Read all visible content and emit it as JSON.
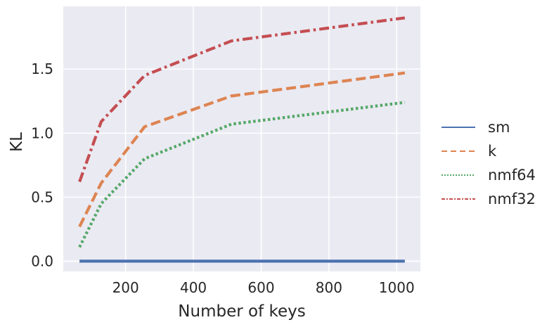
{
  "chart_data": {
    "type": "line",
    "xlabel": "Number of keys",
    "ylabel": "KL",
    "x": [
      64,
      128,
      256,
      512,
      1024
    ],
    "xlim": [
      16,
      1070
    ],
    "ylim": [
      -0.08,
      1.99
    ],
    "xticks": [
      200,
      400,
      600,
      800,
      1000
    ],
    "yticks": [
      0.0,
      0.5,
      1.0,
      1.5
    ],
    "ytick_labels": [
      "0.0",
      "0.5",
      "1.0",
      "1.5"
    ],
    "grid": true,
    "legend_position": "right, outside plot",
    "background_color": "#eaeaf2",
    "series": [
      {
        "name": "sm",
        "values": [
          0.0,
          0.0,
          0.0,
          0.0,
          0.0
        ],
        "color": "#4c72b0",
        "style": "solid"
      },
      {
        "name": "k",
        "values": [
          0.27,
          0.61,
          1.05,
          1.29,
          1.47
        ],
        "color": "#dd8452",
        "style": "dashed"
      },
      {
        "name": "nmf64",
        "values": [
          0.11,
          0.45,
          0.8,
          1.07,
          1.24
        ],
        "color": "#55a868",
        "style": "dotted"
      },
      {
        "name": "nmf32",
        "values": [
          0.62,
          1.09,
          1.45,
          1.72,
          1.9
        ],
        "color": "#c44e52",
        "style": "dashdot"
      }
    ]
  }
}
